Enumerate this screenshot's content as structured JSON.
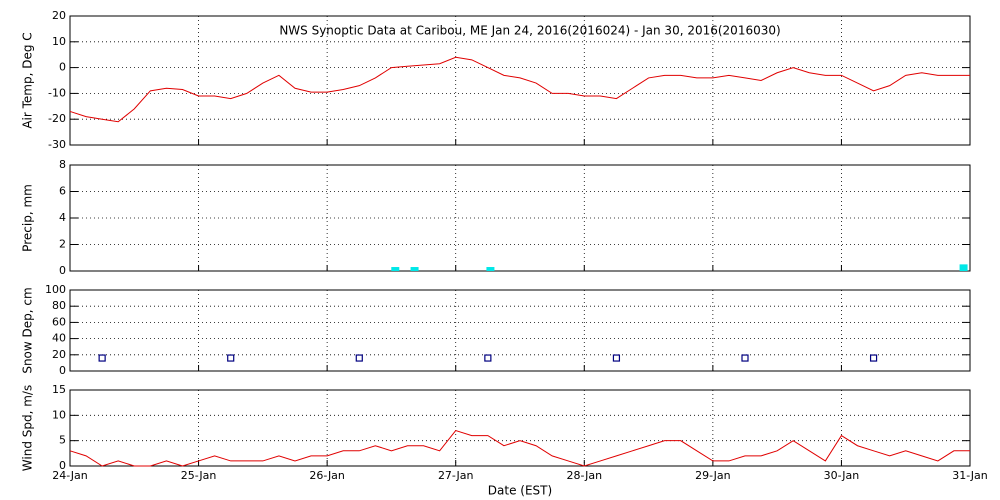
{
  "chart_data": [
    {
      "type": "line",
      "title": "NWS Synoptic Data at Caribou, ME   Jan 24, 2016(2016024) - Jan 30, 2016(2016030)",
      "ylabel": "Air Temp, Deg C",
      "color": "#e00000",
      "x": [
        0,
        0.125,
        0.25,
        0.375,
        0.5,
        0.625,
        0.75,
        0.875,
        1,
        1.125,
        1.25,
        1.375,
        1.5,
        1.625,
        1.75,
        1.875,
        2,
        2.125,
        2.25,
        2.375,
        2.5,
        2.625,
        2.75,
        2.875,
        3,
        3.125,
        3.25,
        3.375,
        3.5,
        3.625,
        3.75,
        3.875,
        4,
        4.125,
        4.25,
        4.375,
        4.5,
        4.625,
        4.75,
        4.875,
        5,
        5.125,
        5.25,
        5.375,
        5.5,
        5.625,
        5.75,
        5.875,
        6,
        6.125,
        6.25,
        6.375,
        6.5,
        6.625,
        6.75,
        6.875,
        7
      ],
      "values": [
        -17,
        -19,
        -20,
        -21,
        -16,
        -9,
        -8,
        -8.5,
        -11,
        -11,
        -12,
        -10,
        -6,
        -3,
        -8,
        -9.5,
        -9.5,
        -8.5,
        -7,
        -4,
        0,
        0.5,
        1,
        1.5,
        4,
        3,
        0,
        -3,
        -4,
        -6,
        -10,
        -10,
        -11,
        -11,
        -12,
        -8,
        -4,
        -3,
        -3,
        -4,
        -4,
        -3,
        -4,
        -5,
        -2,
        0,
        -2,
        -3,
        -3,
        -6,
        -9,
        -7,
        -3,
        -2,
        -3,
        -3,
        -3
      ],
      "xlim": [
        0,
        7
      ],
      "xticks": [
        0,
        1,
        2,
        3,
        4,
        5,
        6,
        7
      ],
      "ylim": [
        -30,
        20
      ],
      "yticks": [
        -30,
        -20,
        -10,
        0,
        10,
        20
      ],
      "grid": true
    },
    {
      "type": "bar",
      "ylabel": "Precip, mm",
      "color": "#00e8e8",
      "x": [
        2.53,
        2.68,
        3.27,
        6.95
      ],
      "values": [
        0.3,
        0.3,
        0.3,
        0.5
      ],
      "xlim": [
        0,
        7
      ],
      "xticks": [
        0,
        1,
        2,
        3,
        4,
        5,
        6,
        7
      ],
      "ylim": [
        0,
        8
      ],
      "yticks": [
        0,
        2,
        4,
        6,
        8
      ],
      "grid": true
    },
    {
      "type": "scatter",
      "ylabel": "Snow Dep, cm",
      "color": "#000080",
      "x": [
        0.25,
        1.25,
        2.25,
        3.25,
        4.25,
        5.25,
        6.25
      ],
      "values": [
        16,
        16,
        16,
        16,
        16,
        16,
        16
      ],
      "xlim": [
        0,
        7
      ],
      "xticks": [
        0,
        1,
        2,
        3,
        4,
        5,
        6,
        7
      ],
      "ylim": [
        0,
        100
      ],
      "yticks": [
        0,
        20,
        40,
        60,
        80,
        100
      ],
      "grid": true
    },
    {
      "type": "line",
      "ylabel": "Wind Spd, m/s",
      "xlabel": "Date (EST)",
      "color": "#e00000",
      "x": [
        0,
        0.125,
        0.25,
        0.375,
        0.5,
        0.625,
        0.75,
        0.875,
        1,
        1.125,
        1.25,
        1.375,
        1.5,
        1.625,
        1.75,
        1.875,
        2,
        2.125,
        2.25,
        2.375,
        2.5,
        2.625,
        2.75,
        2.875,
        3,
        3.125,
        3.25,
        3.375,
        3.5,
        3.625,
        3.75,
        3.875,
        4,
        4.125,
        4.25,
        4.375,
        4.5,
        4.625,
        4.75,
        4.875,
        5,
        5.125,
        5.25,
        5.375,
        5.5,
        5.625,
        5.75,
        5.875,
        6,
        6.125,
        6.25,
        6.375,
        6.5,
        6.625,
        6.75,
        6.875,
        7
      ],
      "values": [
        3,
        2,
        0,
        1,
        0,
        0,
        1,
        0,
        1,
        2,
        1,
        1,
        1,
        2,
        1,
        2,
        2,
        3,
        3,
        4,
        3,
        4,
        4,
        3,
        7,
        6,
        6,
        4,
        5,
        4,
        2,
        1,
        0,
        1,
        2,
        3,
        4,
        5,
        5,
        3,
        1,
        1,
        2,
        2,
        3,
        5,
        3,
        1,
        6,
        4,
        3,
        2,
        3,
        2,
        1,
        3,
        3
      ],
      "xlim": [
        0,
        7
      ],
      "xticks": [
        {
          "value": 0,
          "label": "24-Jan"
        },
        {
          "value": 1,
          "label": "25-Jan"
        },
        {
          "value": 2,
          "label": "26-Jan"
        },
        {
          "value": 3,
          "label": "27-Jan"
        },
        {
          "value": 4,
          "label": "28-Jan"
        },
        {
          "value": 5,
          "label": "29-Jan"
        },
        {
          "value": 6,
          "label": "30-Jan"
        },
        {
          "value": 7,
          "label": "31-Jan"
        }
      ],
      "ylim": [
        0,
        15
      ],
      "yticks": [
        0,
        5,
        10,
        15
      ],
      "grid": true
    }
  ]
}
